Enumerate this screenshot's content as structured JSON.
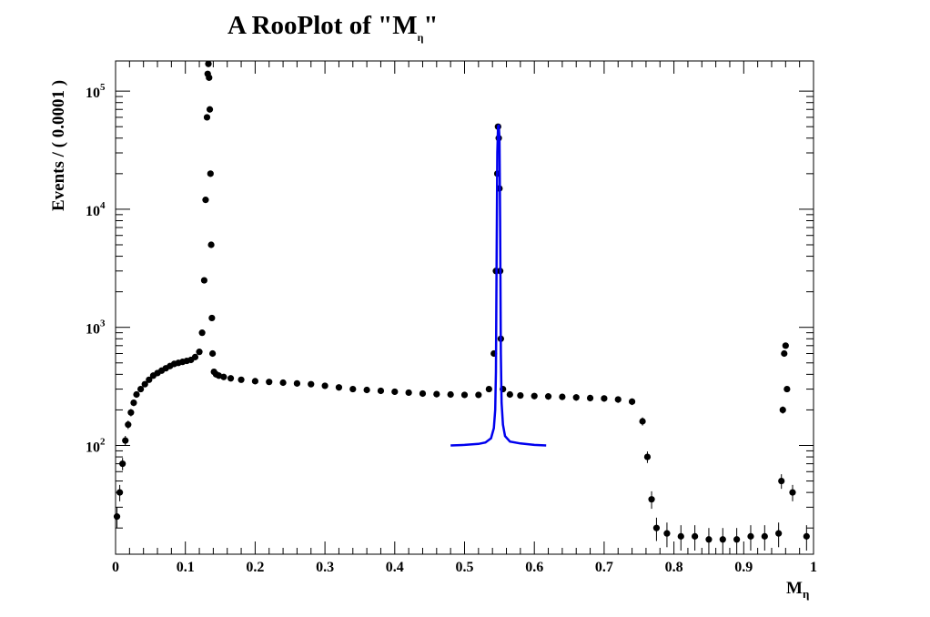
{
  "chart_data": {
    "type": "scatter",
    "title": "A RooPlot of \"M",
    "title_subscript": "η",
    "title_suffix": "\"",
    "xlabel": "M",
    "xlabel_subscript": "η",
    "ylabel": "Events / ( 0.0001 )",
    "xlim": [
      0,
      1
    ],
    "ylim": [
      12,
      180000
    ],
    "y_scale": "log",
    "grid": false,
    "x_ticks": [
      "0",
      "0.1",
      "0.2",
      "0.3",
      "0.4",
      "0.5",
      "0.6",
      "0.7",
      "0.8",
      "0.9",
      "1"
    ],
    "y_ticks": [
      {
        "base": "10",
        "exp": "2",
        "value": 100
      },
      {
        "base": "10",
        "exp": "3",
        "value": 1000
      },
      {
        "base": "10",
        "exp": "4",
        "value": 10000
      },
      {
        "base": "10",
        "exp": "5",
        "value": 100000
      }
    ],
    "series": [
      {
        "kind": "data_points",
        "color": "#000000",
        "x": [
          0.002,
          0.006,
          0.01,
          0.014,
          0.018,
          0.022,
          0.026,
          0.03,
          0.036,
          0.042,
          0.048,
          0.054,
          0.06,
          0.066,
          0.072,
          0.078,
          0.084,
          0.09,
          0.096,
          0.102,
          0.108,
          0.114,
          0.12,
          0.124,
          0.127,
          0.129,
          0.131,
          0.132,
          0.133,
          0.134,
          0.135,
          0.136,
          0.137,
          0.138,
          0.139,
          0.141,
          0.144,
          0.148,
          0.155,
          0.165,
          0.18,
          0.2,
          0.22,
          0.24,
          0.26,
          0.28,
          0.3,
          0.32,
          0.34,
          0.36,
          0.38,
          0.4,
          0.42,
          0.44,
          0.46,
          0.48,
          0.5,
          0.52,
          0.535,
          0.542,
          0.545,
          0.547,
          0.548,
          0.549,
          0.55,
          0.551,
          0.552,
          0.555,
          0.565,
          0.58,
          0.6,
          0.62,
          0.64,
          0.66,
          0.68,
          0.7,
          0.72,
          0.74,
          0.755,
          0.762,
          0.768,
          0.775,
          0.79,
          0.81,
          0.83,
          0.85,
          0.87,
          0.89,
          0.91,
          0.93,
          0.95,
          0.954,
          0.956,
          0.958,
          0.96,
          0.962,
          0.97,
          0.99
        ],
        "y": [
          25,
          40,
          70,
          110,
          150,
          190,
          230,
          270,
          300,
          330,
          360,
          390,
          410,
          430,
          450,
          470,
          490,
          500,
          510,
          520,
          530,
          560,
          620,
          900,
          2500,
          12000,
          60000,
          140000,
          170000,
          130000,
          70000,
          20000,
          5000,
          1200,
          600,
          420,
          400,
          390,
          380,
          370,
          360,
          350,
          345,
          340,
          335,
          330,
          320,
          310,
          300,
          295,
          290,
          285,
          280,
          275,
          272,
          270,
          268,
          268,
          300,
          600,
          3000,
          20000,
          50000,
          40000,
          15000,
          3000,
          800,
          300,
          270,
          265,
          262,
          260,
          258,
          255,
          252,
          250,
          245,
          235,
          160,
          80,
          35,
          20,
          18,
          17,
          17,
          16,
          16,
          16,
          17,
          17,
          18,
          50,
          200,
          600,
          700,
          300,
          40,
          17
        ]
      },
      {
        "kind": "fit_curve",
        "color": "#0000ee",
        "x": [
          0.48,
          0.5,
          0.52,
          0.53,
          0.538,
          0.542,
          0.544,
          0.545,
          0.546,
          0.547,
          0.548,
          0.549,
          0.55,
          0.551,
          0.552,
          0.553,
          0.555,
          0.558,
          0.565,
          0.58,
          0.6,
          0.617
        ],
        "y": [
          100,
          101,
          103,
          106,
          115,
          140,
          200,
          420,
          4500,
          30000,
          50000,
          52000,
          40000,
          8000,
          600,
          230,
          150,
          120,
          108,
          104,
          101,
          100
        ]
      }
    ]
  }
}
